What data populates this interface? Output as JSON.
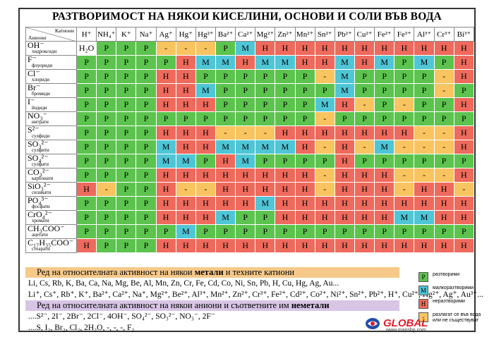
{
  "title": "РАЗТВОРИМОСТ НА НЯКОИ КИСЕЛИНИ, ОСНОВИ И СОЛИ ВЪВ ВОДА",
  "corner": {
    "cations": "Катиони",
    "anions": "Аниони"
  },
  "cations": [
    "H⁺",
    "NH₄⁺",
    "K⁺",
    "Na⁺",
    "Ag⁺",
    "Hg⁺",
    "Hg²⁺",
    "Ba²⁺",
    "Ca²⁺",
    "Mg²⁺",
    "Zn²⁺",
    "Mn²⁺",
    "Sn²⁺",
    "Pb²⁺",
    "Cu²⁺",
    "Fe²⁺",
    "Fe³⁺",
    "Al³⁺",
    "Cr³⁺",
    "Bi³⁺"
  ],
  "anions": [
    {
      "formula": "OH⁻",
      "name": "хидроксиди",
      "cells": [
        "H₂O",
        "P",
        "P",
        "P",
        "-",
        "-",
        "-",
        "P",
        "M",
        "H",
        "H",
        "H",
        "H",
        "H",
        "H",
        "H",
        "H",
        "H",
        "H",
        "H"
      ]
    },
    {
      "formula": "F⁻",
      "name": "флуориди",
      "cells": [
        "P",
        "P",
        "P",
        "P",
        "P",
        "H",
        "M",
        "M",
        "H",
        "M",
        "M",
        "H",
        "H",
        "M",
        "H",
        "M",
        "P",
        "M",
        "P",
        "H"
      ]
    },
    {
      "formula": "Cl⁻",
      "name": "хлориди",
      "cells": [
        "P",
        "P",
        "P",
        "P",
        "H",
        "H",
        "P",
        "P",
        "P",
        "P",
        "P",
        "P",
        "-",
        "M",
        "P",
        "P",
        "P",
        "P",
        "-",
        "H"
      ]
    },
    {
      "formula": "Br⁻",
      "name": "бромиди",
      "cells": [
        "P",
        "P",
        "P",
        "P",
        "H",
        "H",
        "M",
        "P",
        "P",
        "P",
        "P",
        "P",
        "P",
        "M",
        "P",
        "P",
        "P",
        "P",
        "-",
        "P"
      ]
    },
    {
      "formula": "I⁻",
      "name": "йодиди",
      "cells": [
        "P",
        "P",
        "P",
        "P",
        "H",
        "H",
        "H",
        "P",
        "P",
        "P",
        "P",
        "P",
        "M",
        "H",
        "-",
        "P",
        "-",
        "P",
        "P",
        "H"
      ]
    },
    {
      "formula": "NO₃⁻",
      "name": "нитрати",
      "cells": [
        "P",
        "P",
        "P",
        "P",
        "P",
        "P",
        "P",
        "P",
        "P",
        "P",
        "P",
        "P",
        "-",
        "P",
        "P",
        "P",
        "P",
        "P",
        "P",
        "P"
      ]
    },
    {
      "formula": "S²⁻",
      "name": "сулфиди",
      "cells": [
        "P",
        "P",
        "P",
        "P",
        "H",
        "H",
        "H",
        "-",
        "-",
        "-",
        "H",
        "H",
        "H",
        "H",
        "H",
        "H",
        "H",
        "-",
        "-",
        "H"
      ]
    },
    {
      "formula": "SO₃²⁻",
      "name": "сулфити",
      "cells": [
        "P",
        "P",
        "P",
        "P",
        "M",
        "H",
        "H",
        "M",
        "M",
        "M",
        "M",
        "H",
        "-",
        "H",
        "-",
        "M",
        "-",
        "-",
        "-",
        "H"
      ]
    },
    {
      "formula": "SO₄²⁻",
      "name": "сулфати",
      "cells": [
        "P",
        "P",
        "P",
        "P",
        "M",
        "M",
        "P",
        "H",
        "M",
        "P",
        "P",
        "P",
        "P",
        "H",
        "P",
        "P",
        "P",
        "P",
        "P",
        "P"
      ]
    },
    {
      "formula": "CO₃²⁻",
      "name": "карбонати",
      "cells": [
        "P",
        "P",
        "P",
        "P",
        "H",
        "H",
        "H",
        "H",
        "H",
        "H",
        "H",
        "H",
        "-",
        "H",
        "H",
        "H",
        "-",
        "-",
        "-",
        "H"
      ]
    },
    {
      "formula": "SiO₃²⁻",
      "name": "силикати",
      "cells": [
        "H",
        "-",
        "P",
        "P",
        "H",
        "-",
        "-",
        "H",
        "H",
        "H",
        "H",
        "H",
        "-",
        "H",
        "H",
        "H",
        "-",
        "H",
        "H",
        "-"
      ]
    },
    {
      "formula": "PO₄³⁻",
      "name": "фосфати",
      "cells": [
        "P",
        "P",
        "P",
        "P",
        "H",
        "H",
        "H",
        "H",
        "H",
        "M",
        "H",
        "H",
        "H",
        "H",
        "H",
        "H",
        "H",
        "H",
        "H",
        "H"
      ]
    },
    {
      "formula": "CrO₄²⁻",
      "name": "хромати",
      "cells": [
        "P",
        "P",
        "P",
        "P",
        "H",
        "H",
        "H",
        "M",
        "P",
        "P",
        "H",
        "H",
        "H",
        "H",
        "H",
        "H",
        "M",
        "M",
        "H",
        "H"
      ]
    },
    {
      "formula": "CH₃COO⁻",
      "name": "ацетати",
      "cells": [
        "P",
        "P",
        "P",
        "P",
        "P",
        "M",
        "P",
        "P",
        "P",
        "P",
        "P",
        "P",
        "P",
        "P",
        "P",
        "P",
        "P",
        "P",
        "P",
        "P"
      ]
    },
    {
      "formula": "C₁₇H₃₅COO⁻",
      "name": "стеарати",
      "cells": [
        "H",
        "P",
        "P",
        "P",
        "H",
        "H",
        "H",
        "H",
        "H",
        "H",
        "H",
        "H",
        "H",
        "H",
        "H",
        "H",
        "H",
        "H",
        "H",
        "H"
      ]
    }
  ],
  "series_metals": {
    "heading_pre": "Ред на относителната активност на някои ",
    "heading_bold": "метали",
    "heading_post": " и техните катиони",
    "metals_line": "Li, Cs, Rb, K, Ba, Ca, Na, Mg, Be, Al, Mn, Zn, Cr, Fe, Cd, Co, Ni, Sn, Pb, H, Cu, Hg, Ag, Au...",
    "cations_line": "Li⁺, Cs⁺, Rb⁺, K⁺, Ba²⁺, Ca²⁺, Na⁺, Mg²⁺, Be²⁺, Al³⁺, Mn²⁺, Zn²⁺, Cr³⁺, Fe²⁺, Cd²⁺, Co²⁺, Ni²⁺, Sn²⁺, Pb²⁺, H⁺, Cu²⁺, Hg²⁺, Ag⁺, Au³⁺..."
  },
  "series_nonmetals": {
    "heading_pre": "Ред на относителната активност на някои аниони и съответните им ",
    "heading_bold": "неметали",
    "anions_line": "....S²⁻, 2I⁻, 2Br⁻, 2Cl⁻, 4OH⁻, SO₄²⁻, SO₃²⁻, NO₃⁻, 2F⁻",
    "nonmetals_line": "....S, I₂, Br₂, Cl₂, 2H₂O, -, -, -, F₂"
  },
  "legend": [
    {
      "code": "P",
      "label": "разтворими",
      "color": "#5cc34e"
    },
    {
      "code": "M",
      "label": "малкоразтворими",
      "color": "#4fc6d6"
    },
    {
      "code": "H",
      "label": "неразтворими",
      "color": "#ee6a5c"
    },
    {
      "code": "-",
      "label": "разлагат се във вода или не съществуват",
      "color": "#f8c460"
    }
  ],
  "logo": {
    "name": "GLOBAL",
    "url": "www.mapsbg.com"
  }
}
